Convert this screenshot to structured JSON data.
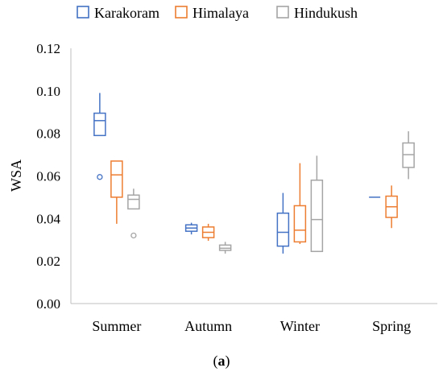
{
  "chart_data": {
    "type": "box",
    "ylabel": "WSA",
    "ylim": [
      0,
      0.12
    ],
    "yticks": [
      "0.00",
      "0.02",
      "0.04",
      "0.06",
      "0.08",
      "0.10",
      "0.12"
    ],
    "categories": [
      "Summer",
      "Autumn",
      "Winter",
      "Spring"
    ],
    "legend_position": "top",
    "grid": false,
    "series": [
      {
        "name": "Karakoram",
        "color": "#4472c4",
        "boxes": [
          {
            "min": 0.079,
            "q1": 0.079,
            "median": 0.086,
            "q3": 0.0895,
            "max": 0.099,
            "outliers": [
              0.0595
            ]
          },
          {
            "min": 0.0325,
            "q1": 0.034,
            "median": 0.0355,
            "q3": 0.037,
            "max": 0.038,
            "outliers": []
          },
          {
            "min": 0.0235,
            "q1": 0.027,
            "median": 0.0335,
            "q3": 0.0425,
            "max": 0.052,
            "outliers": []
          },
          {
            "min": 0.05,
            "q1": 0.05,
            "median": 0.05,
            "q3": 0.05,
            "max": 0.05,
            "outliers": []
          }
        ]
      },
      {
        "name": "Himalaya",
        "color": "#ed7d31",
        "boxes": [
          {
            "min": 0.0375,
            "q1": 0.05,
            "median": 0.0605,
            "q3": 0.067,
            "max": 0.067,
            "outliers": []
          },
          {
            "min": 0.0295,
            "q1": 0.031,
            "median": 0.0335,
            "q3": 0.036,
            "max": 0.0375,
            "outliers": []
          },
          {
            "min": 0.028,
            "q1": 0.029,
            "median": 0.0345,
            "q3": 0.046,
            "max": 0.066,
            "outliers": []
          },
          {
            "min": 0.0355,
            "q1": 0.0405,
            "median": 0.0455,
            "q3": 0.0505,
            "max": 0.0555,
            "outliers": []
          }
        ]
      },
      {
        "name": "Hindukush",
        "color": "#a5a5a5",
        "boxes": [
          {
            "min": 0.0445,
            "q1": 0.0445,
            "median": 0.049,
            "q3": 0.051,
            "max": 0.054,
            "outliers": [
              0.032
            ]
          },
          {
            "min": 0.0235,
            "q1": 0.025,
            "median": 0.026,
            "q3": 0.0275,
            "max": 0.029,
            "outliers": []
          },
          {
            "min": 0.0245,
            "q1": 0.0245,
            "median": 0.0395,
            "q3": 0.058,
            "max": 0.0695,
            "outliers": []
          },
          {
            "min": 0.0585,
            "q1": 0.064,
            "median": 0.07,
            "q3": 0.0755,
            "max": 0.081,
            "outliers": []
          }
        ]
      }
    ]
  },
  "caption": "(a)"
}
